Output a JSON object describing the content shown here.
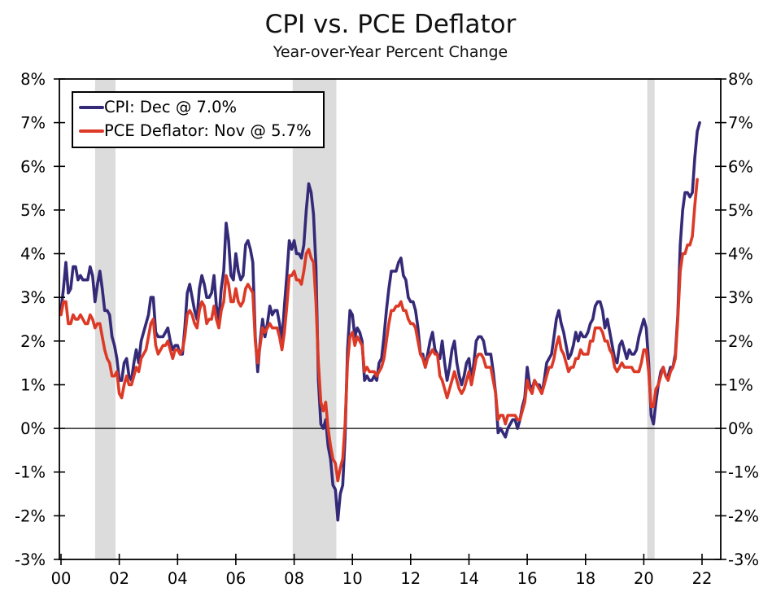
{
  "chart_data": {
    "type": "line",
    "title": "CPI vs. PCE Deflator",
    "subtitle": "Year-over-Year Percent Change",
    "x_unit": "monthly",
    "x_start": {
      "year": 2000,
      "month": 1
    },
    "xlim": [
      2000,
      2022.6
    ],
    "ylim": [
      -3,
      8
    ],
    "grid": "off",
    "zero_line": true,
    "legend_position": "top-left",
    "y_tick_values": [
      8,
      7,
      6,
      5,
      4,
      3,
      2,
      1,
      0,
      -1,
      -2,
      -3
    ],
    "y_tick_labels": [
      "8%",
      "7%",
      "6%",
      "5%",
      "4%",
      "3%",
      "2%",
      "1%",
      "0%",
      "-1%",
      "-2%",
      "-3%"
    ],
    "x_tick_years": [
      2000,
      2002,
      2004,
      2006,
      2008,
      2010,
      2012,
      2014,
      2016,
      2018,
      2020,
      2022
    ],
    "x_tick_labels": [
      "00",
      "02",
      "04",
      "06",
      "08",
      "10",
      "12",
      "14",
      "16",
      "18",
      "20",
      "22"
    ],
    "recession_color": "#dcdcdc",
    "recessions": [
      [
        2001.17,
        2001.87
      ],
      [
        2007.95,
        2009.45
      ],
      [
        2020.12,
        2020.37
      ]
    ],
    "series": [
      {
        "name": "CPI",
        "legend": "CPI: Dec @ 7.0%",
        "color": "#342a78",
        "values": [
          2.7,
          3.2,
          3.8,
          3.1,
          3.2,
          3.7,
          3.7,
          3.4,
          3.5,
          3.4,
          3.4,
          3.4,
          3.7,
          3.5,
          2.9,
          3.3,
          3.6,
          3.2,
          2.7,
          2.7,
          2.6,
          2.1,
          1.9,
          1.6,
          1.1,
          1.1,
          1.5,
          1.6,
          1.2,
          1.1,
          1.5,
          1.8,
          1.5,
          2.0,
          2.2,
          2.4,
          2.6,
          3.0,
          3.0,
          2.2,
          2.1,
          2.1,
          2.1,
          2.2,
          2.3,
          2.0,
          1.8,
          1.9,
          1.9,
          1.7,
          1.7,
          2.3,
          3.1,
          3.3,
          3.0,
          2.7,
          2.5,
          3.2,
          3.5,
          3.3,
          3.0,
          3.0,
          3.1,
          3.5,
          2.8,
          2.5,
          3.2,
          3.6,
          4.7,
          4.3,
          3.5,
          3.4,
          4.0,
          3.6,
          3.4,
          3.5,
          4.2,
          4.3,
          4.1,
          3.8,
          2.1,
          1.3,
          2.0,
          2.5,
          2.1,
          2.4,
          2.8,
          2.6,
          2.7,
          2.7,
          2.4,
          2.0,
          2.8,
          3.5,
          4.3,
          4.1,
          4.3,
          4.0,
          4.0,
          3.9,
          4.2,
          5.0,
          5.6,
          5.4,
          4.9,
          3.7,
          1.1,
          0.1,
          0.0,
          0.2,
          -0.4,
          -0.7,
          -1.3,
          -1.4,
          -2.1,
          -1.5,
          -1.3,
          -0.2,
          1.8,
          2.7,
          2.6,
          2.1,
          2.3,
          2.2,
          2.0,
          1.1,
          1.2,
          1.1,
          1.1,
          1.2,
          1.1,
          1.5,
          1.6,
          2.1,
          2.7,
          3.2,
          3.6,
          3.6,
          3.6,
          3.8,
          3.9,
          3.5,
          3.4,
          3.0,
          2.9,
          2.9,
          2.7,
          2.3,
          1.7,
          1.7,
          1.4,
          1.7,
          2.0,
          2.2,
          1.8,
          1.7,
          1.6,
          2.0,
          1.5,
          1.1,
          1.4,
          1.8,
          2.0,
          1.5,
          1.2,
          1.0,
          1.2,
          1.5,
          1.6,
          1.1,
          1.5,
          2.0,
          2.1,
          2.1,
          2.0,
          1.7,
          1.7,
          1.7,
          1.3,
          0.8,
          -0.1,
          0.0,
          -0.1,
          -0.2,
          0.0,
          0.1,
          0.2,
          0.2,
          0.0,
          0.2,
          0.5,
          0.7,
          1.4,
          1.0,
          0.9,
          1.1,
          1.0,
          1.0,
          0.8,
          1.1,
          1.5,
          1.6,
          1.7,
          2.1,
          2.5,
          2.7,
          2.4,
          2.2,
          1.9,
          1.6,
          1.7,
          1.9,
          2.2,
          2.0,
          2.2,
          2.1,
          2.1,
          2.2,
          2.4,
          2.5,
          2.8,
          2.9,
          2.9,
          2.7,
          2.3,
          2.5,
          2.2,
          1.9,
          1.6,
          1.5,
          1.9,
          2.0,
          1.8,
          1.6,
          1.8,
          1.7,
          1.7,
          1.8,
          2.1,
          2.3,
          2.5,
          2.3,
          1.5,
          0.3,
          0.1,
          0.6,
          1.0,
          1.3,
          1.4,
          1.2,
          1.2,
          1.4,
          1.4,
          1.7,
          2.6,
          4.2,
          5.0,
          5.4,
          5.4,
          5.3,
          5.4,
          6.2,
          6.8,
          7.0
        ]
      },
      {
        "name": "PCE Deflator",
        "legend": "PCE Deflator: Nov @ 5.7%",
        "color": "#dc3a27",
        "values": [
          2.6,
          2.9,
          2.9,
          2.4,
          2.4,
          2.6,
          2.5,
          2.5,
          2.6,
          2.5,
          2.4,
          2.4,
          2.6,
          2.5,
          2.3,
          2.4,
          2.4,
          2.1,
          1.8,
          1.6,
          1.5,
          1.2,
          1.2,
          1.3,
          0.8,
          0.7,
          1.0,
          1.2,
          1.0,
          1.0,
          1.2,
          1.4,
          1.3,
          1.6,
          1.7,
          1.8,
          2.1,
          2.4,
          2.5,
          1.9,
          1.7,
          1.8,
          1.9,
          1.9,
          2.0,
          1.8,
          1.6,
          1.8,
          1.8,
          1.7,
          1.8,
          2.1,
          2.6,
          2.7,
          2.6,
          2.4,
          2.3,
          2.7,
          2.9,
          2.8,
          2.4,
          2.5,
          2.5,
          2.8,
          2.5,
          2.3,
          2.7,
          2.9,
          3.5,
          3.3,
          2.9,
          2.9,
          3.2,
          2.9,
          2.8,
          2.9,
          3.2,
          3.3,
          3.2,
          3.1,
          2.0,
          1.5,
          1.9,
          2.3,
          2.2,
          2.3,
          2.4,
          2.3,
          2.3,
          2.3,
          2.1,
          1.8,
          2.2,
          2.8,
          3.5,
          3.5,
          3.6,
          3.4,
          3.4,
          3.3,
          3.6,
          4.0,
          4.1,
          3.9,
          3.8,
          2.9,
          1.5,
          0.6,
          0.4,
          0.6,
          0.0,
          -0.4,
          -0.7,
          -0.8,
          -1.2,
          -0.9,
          -0.7,
          0.1,
          1.5,
          2.1,
          2.2,
          1.9,
          2.1,
          2.0,
          1.9,
          1.3,
          1.4,
          1.3,
          1.3,
          1.3,
          1.2,
          1.3,
          1.4,
          1.6,
          2.0,
          2.4,
          2.7,
          2.7,
          2.8,
          2.8,
          2.9,
          2.7,
          2.7,
          2.5,
          2.4,
          2.4,
          2.3,
          2.0,
          1.7,
          1.6,
          1.4,
          1.6,
          1.7,
          1.8,
          1.7,
          1.7,
          1.2,
          1.1,
          0.9,
          0.7,
          0.9,
          1.1,
          1.3,
          1.1,
          0.9,
          0.8,
          0.9,
          1.1,
          1.3,
          1.0,
          1.3,
          1.6,
          1.7,
          1.7,
          1.6,
          1.4,
          1.4,
          1.4,
          1.1,
          0.8,
          0.2,
          0.3,
          0.3,
          0.1,
          0.3,
          0.3,
          0.3,
          0.3,
          0.2,
          0.2,
          0.4,
          0.6,
          1.1,
          0.9,
          0.8,
          1.1,
          1.0,
          0.9,
          0.8,
          1.0,
          1.2,
          1.4,
          1.4,
          1.6,
          1.9,
          2.1,
          1.8,
          1.7,
          1.5,
          1.3,
          1.4,
          1.4,
          1.6,
          1.6,
          1.8,
          1.7,
          1.7,
          1.7,
          2.0,
          2.0,
          2.3,
          2.3,
          2.3,
          2.2,
          2.0,
          2.0,
          1.8,
          1.7,
          1.4,
          1.3,
          1.4,
          1.5,
          1.4,
          1.4,
          1.4,
          1.4,
          1.3,
          1.3,
          1.3,
          1.5,
          1.8,
          1.8,
          1.3,
          0.5,
          0.5,
          0.9,
          1.0,
          1.2,
          1.4,
          1.2,
          1.1,
          1.3,
          1.4,
          1.6,
          2.5,
          3.6,
          4.0,
          4.0,
          4.2,
          4.2,
          4.4,
          5.1,
          5.7
        ]
      }
    ]
  }
}
